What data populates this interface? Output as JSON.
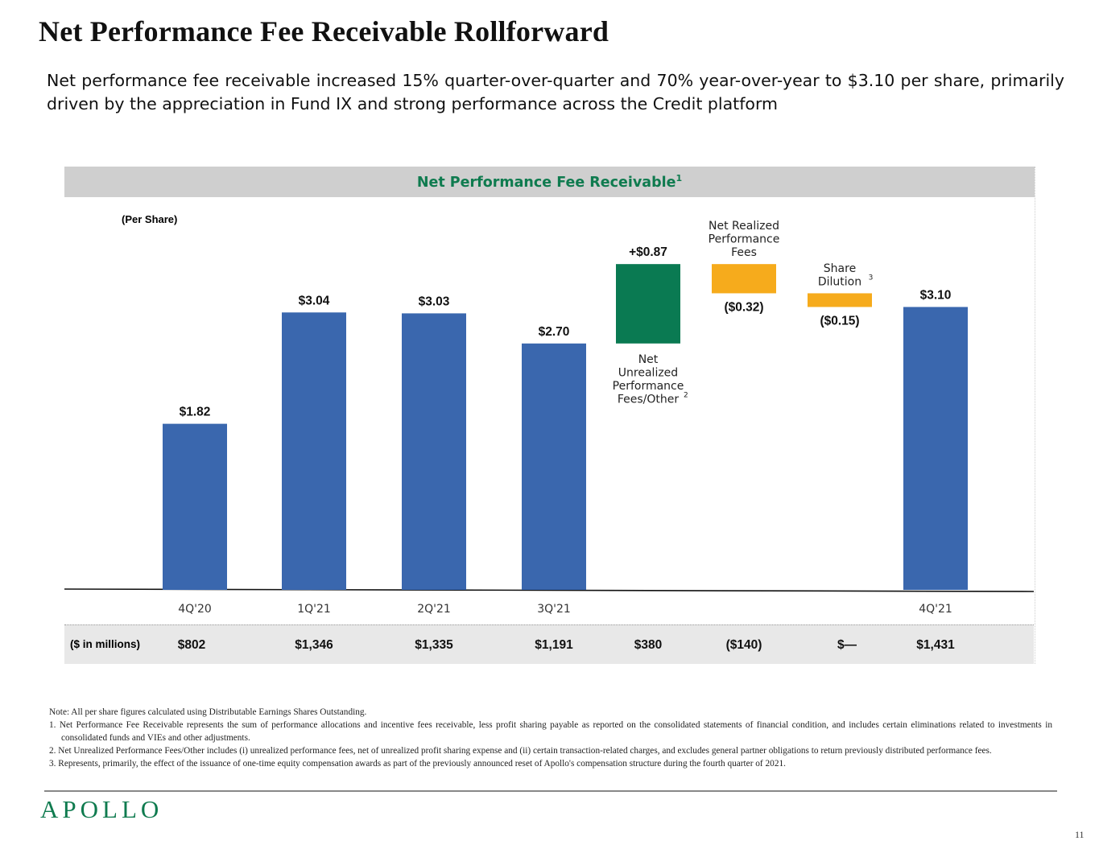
{
  "page": {
    "title": "Net Performance Fee Receivable Rollforward",
    "subtitle": "Net performance fee receivable increased 15% quarter-over-quarter and 70% year-over-year to $3.10 per share, primarily driven by the appreciation in Fund IX and strong performance across the Credit platform",
    "panel_title": "Net Performance Fee Receivable",
    "panel_title_footnote": "1",
    "unit_label": "(Per Share)",
    "millions_label": "($ in millions)",
    "logo": "APOLLO",
    "page_number": "11"
  },
  "colors": {
    "quarter_bar": "#3a67ae",
    "increase_bar": "#0a7a52",
    "decrease_bar": "#f6ab1c",
    "brand_green": "#0f7b4f",
    "header_band": "#cfcfcf",
    "footer_band": "#e8e8e8"
  },
  "notes": [
    "Note: All per share figures calculated using Distributable Earnings Shares Outstanding.",
    "1. Net Performance Fee Receivable represents the sum of performance allocations and incentive fees receivable, less profit sharing payable as reported on the consolidated statements of financial condition, and includes certain eliminations related to investments in consolidated funds and VIEs and other adjustments.",
    "2. Net Unrealized Performance Fees/Other includes (i) unrealized performance fees, net of unrealized profit sharing expense and (ii) certain transaction-related charges, and excludes general partner obligations to return previously distributed performance fees.",
    "3. Represents, primarily, the effect of the issuance of one-time equity compensation awards as part of the previously announced reset of Apollo's compensation structure during the fourth quarter of 2021."
  ],
  "chart_data": {
    "type": "bar",
    "subtype": "waterfall",
    "title": "Net Performance Fee Receivable",
    "ylabel": "(Per Share)",
    "ylim": [
      0,
      4.5
    ],
    "grid": false,
    "legend": "none",
    "categories": [
      "4Q'20",
      "1Q'21",
      "2Q'21",
      "3Q'21",
      "Net Unrealized Performance Fees/Other",
      "Net Realized Performance Fees",
      "Share Dilution",
      "4Q'21"
    ],
    "bars": [
      {
        "category": "4Q'20",
        "kind": "total",
        "value": 1.82,
        "label": "$1.82",
        "axis_label": "4Q'20",
        "millions": "$802"
      },
      {
        "category": "1Q'21",
        "kind": "total",
        "value": 3.04,
        "label": "$3.04",
        "axis_label": "1Q'21",
        "millions": "$1,346"
      },
      {
        "category": "2Q'21",
        "kind": "total",
        "value": 3.03,
        "label": "$3.03",
        "axis_label": "2Q'21",
        "millions": "$1,335"
      },
      {
        "category": "3Q'21",
        "kind": "total",
        "value": 2.7,
        "label": "$2.70",
        "axis_label": "3Q'21",
        "millions": "$1,191"
      },
      {
        "category": "Net Unrealized Performance Fees/Other",
        "kind": "increase",
        "value": 0.87,
        "start": 2.7,
        "label": "+$0.87",
        "desc_lines": [
          "Net",
          "Unrealized",
          "Performance",
          "Fees/Other"
        ],
        "footnote": "2",
        "desc_position": "below",
        "axis_label": "",
        "millions": "$380"
      },
      {
        "category": "Net Realized Performance Fees",
        "kind": "decrease",
        "value": -0.32,
        "start": 3.57,
        "label": "($0.32)",
        "desc_lines": [
          "Net Realized",
          "Performance",
          "Fees"
        ],
        "footnote": "",
        "desc_position": "above",
        "axis_label": "",
        "millions": "($140)"
      },
      {
        "category": "Share Dilution",
        "kind": "decrease",
        "value": -0.15,
        "start": 3.25,
        "label": "($0.15)",
        "desc_lines": [
          "Share",
          "Dilution"
        ],
        "footnote": "3",
        "desc_position": "above",
        "axis_label": "",
        "millions": "$—"
      },
      {
        "category": "4Q'21",
        "kind": "total",
        "value": 3.1,
        "label": "$3.10",
        "axis_label": "4Q'21",
        "millions": "$1,431"
      }
    ]
  }
}
